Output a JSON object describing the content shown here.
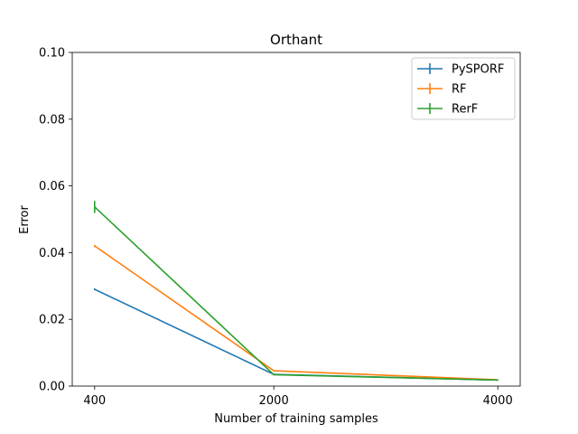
{
  "chart_data": {
    "type": "line",
    "title": "Orthant",
    "xlabel": "Number of training samples",
    "ylabel": "Error",
    "x": [
      400,
      2000,
      4000
    ],
    "x_tick_labels": [
      "400",
      "2000",
      "4000"
    ],
    "xlim": [
      200,
      4200
    ],
    "ylim": [
      0,
      0.1
    ],
    "y_ticks": [
      0.0,
      0.02,
      0.04,
      0.06,
      0.08,
      0.1
    ],
    "y_tick_labels": [
      "0.00",
      "0.02",
      "0.04",
      "0.06",
      "0.08",
      "0.10"
    ],
    "grid": false,
    "legend_position": "top-right",
    "series": [
      {
        "name": "PySPORF",
        "color": "#1f77b4",
        "values": [
          0.029,
          0.0035,
          0.0018
        ],
        "errors": [
          0.0003,
          0.0002,
          0.0001
        ]
      },
      {
        "name": "RF",
        "color": "#ff7f0e",
        "values": [
          0.042,
          0.0046,
          0.0019
        ],
        "errors": [
          0.0003,
          0.0002,
          0.0001
        ]
      },
      {
        "name": "RerF",
        "color": "#2ca02c",
        "values": [
          0.0537,
          0.0034,
          0.0018
        ],
        "errors": [
          0.0018,
          0.0002,
          0.0001
        ]
      }
    ]
  }
}
